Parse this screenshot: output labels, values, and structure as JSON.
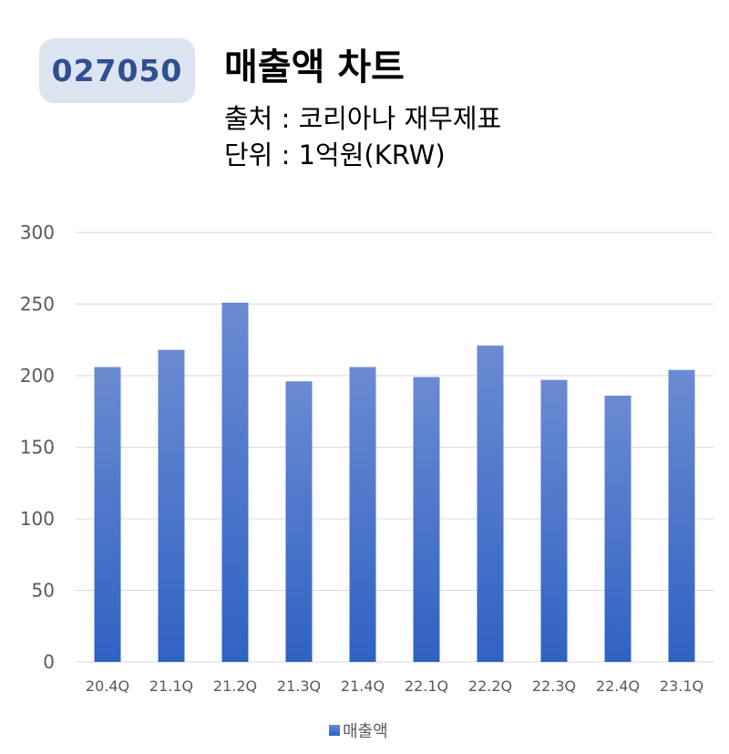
{
  "header": {
    "code": "027050",
    "title": "매출액 차트",
    "source": "출처 : 코리아나 재무제표",
    "unit": "단위 : 1억원(KRW)"
  },
  "colors": {
    "badge_bg": "#dde4f1",
    "badge_text": "#2f4f8f",
    "bar_top": "#6a8bd1",
    "bar_bottom": "#2f62c4",
    "grid": "#d9d9d9",
    "axis_text": "#595959"
  },
  "chart_data": {
    "type": "bar",
    "categories": [
      "20.4Q",
      "21.1Q",
      "21.2Q",
      "21.3Q",
      "21.4Q",
      "22.1Q",
      "22.2Q",
      "22.3Q",
      "22.4Q",
      "23.1Q"
    ],
    "series": [
      {
        "name": "매출액",
        "values": [
          206,
          218,
          251,
          196,
          206,
          199,
          221,
          197,
          186,
          204
        ]
      }
    ],
    "yticks": [
      0,
      50,
      100,
      150,
      200,
      250,
      300
    ],
    "ylim": [
      0,
      300
    ],
    "grid": true,
    "legend": "bottom"
  }
}
